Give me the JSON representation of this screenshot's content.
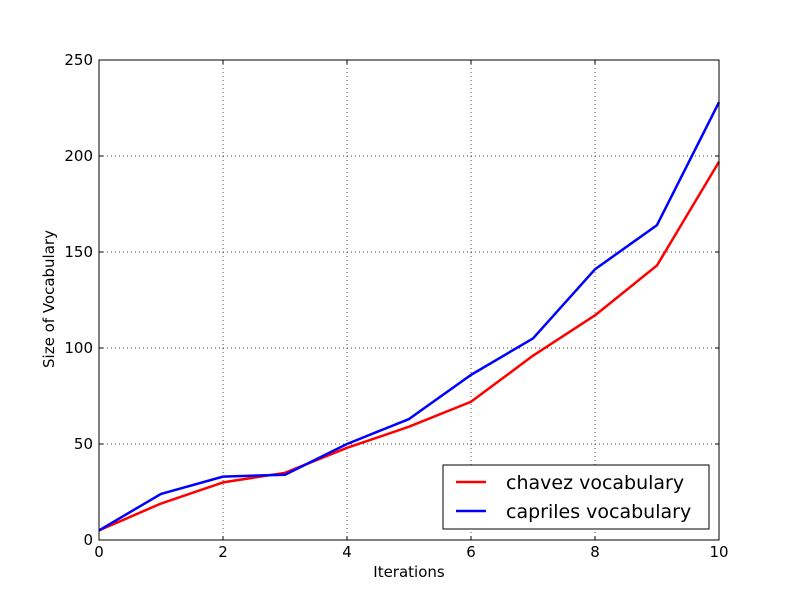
{
  "chart_data": {
    "type": "line",
    "title": "",
    "xlabel": "Iterations",
    "ylabel": "Size of Vocabulary",
    "xlim": [
      0,
      10
    ],
    "ylim": [
      0,
      250
    ],
    "x_ticks": [
      0,
      2,
      4,
      6,
      8,
      10
    ],
    "y_ticks": [
      0,
      50,
      100,
      150,
      200,
      250
    ],
    "grid": true,
    "legend_position": "lower-right",
    "x": [
      0,
      1,
      2,
      3,
      4,
      5,
      6,
      7,
      8,
      9,
      10
    ],
    "series": [
      {
        "name": "chavez vocabulary",
        "color": "#ff0000",
        "values": [
          5,
          19,
          30,
          35,
          48,
          59,
          72,
          96,
          117,
          143,
          197
        ]
      },
      {
        "name": "capriles vocabulary",
        "color": "#0000ff",
        "values": [
          5,
          24,
          33,
          34,
          50,
          63,
          86,
          105,
          141,
          164,
          228
        ]
      }
    ]
  }
}
